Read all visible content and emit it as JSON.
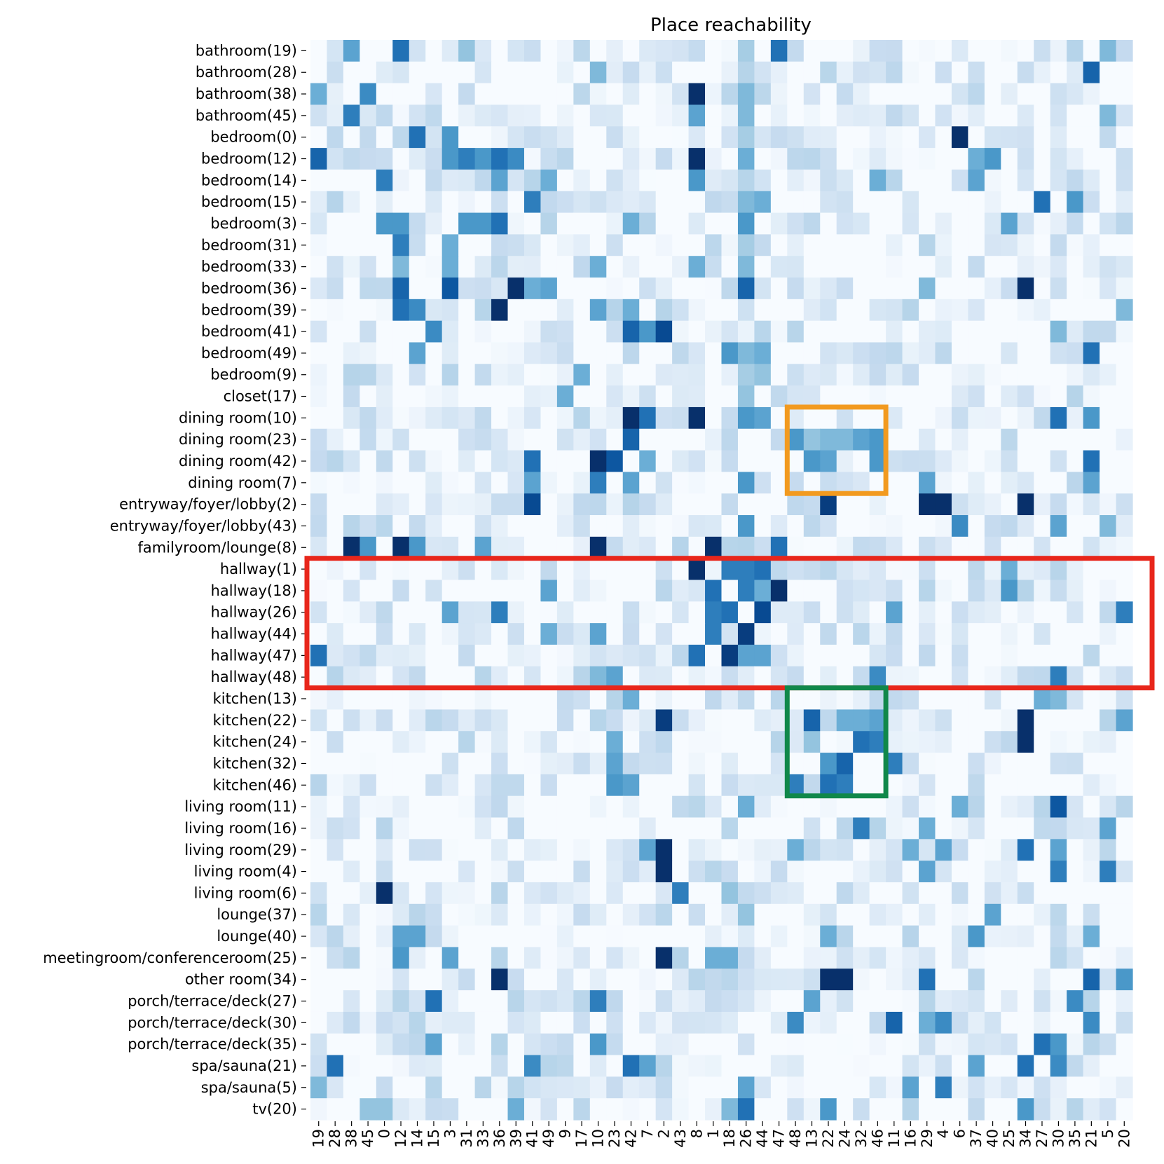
{
  "chart_data": {
    "type": "heatmap",
    "title": "Place reachability",
    "colormap": "Blues",
    "value_range": [
      0,
      1
    ],
    "row_labels": [
      "bathroom(19)",
      "bathroom(28)",
      "bathroom(38)",
      "bathroom(45)",
      "bedroom(0)",
      "bedroom(12)",
      "bedroom(14)",
      "bedroom(15)",
      "bedroom(3)",
      "bedroom(31)",
      "bedroom(33)",
      "bedroom(36)",
      "bedroom(39)",
      "bedroom(41)",
      "bedroom(49)",
      "bedroom(9)",
      "closet(17)",
      "dining room(10)",
      "dining room(23)",
      "dining room(42)",
      "dining room(7)",
      "entryway/foyer/lobby(2)",
      "entryway/foyer/lobby(43)",
      "familyroom/lounge(8)",
      "hallway(1)",
      "hallway(18)",
      "hallway(26)",
      "hallway(44)",
      "hallway(47)",
      "hallway(48)",
      "kitchen(13)",
      "kitchen(22)",
      "kitchen(24)",
      "kitchen(32)",
      "kitchen(46)",
      "living room(11)",
      "living room(16)",
      "living room(29)",
      "living room(4)",
      "living room(6)",
      "lounge(37)",
      "lounge(40)",
      "meetingroom/conferenceroom(25)",
      "other room(34)",
      "porch/terrace/deck(27)",
      "porch/terrace/deck(30)",
      "porch/terrace/deck(35)",
      "spa/sauna(21)",
      "spa/sauna(5)",
      "tv(20)"
    ],
    "col_labels": [
      "19",
      "28",
      "38",
      "45",
      "0",
      "12",
      "14",
      "15",
      "3",
      "31",
      "33",
      "36",
      "39",
      "41",
      "49",
      "9",
      "17",
      "10",
      "23",
      "42",
      "7",
      "2",
      "43",
      "8",
      "1",
      "18",
      "26",
      "44",
      "47",
      "48",
      "13",
      "22",
      "24",
      "32",
      "46",
      "11",
      "16",
      "29",
      "4",
      "6",
      "37",
      "40",
      "25",
      "34",
      "27",
      "30",
      "35",
      "21",
      "5",
      "20"
    ],
    "strong_cells": [
      [
        0,
        2,
        0.55
      ],
      [
        0,
        5,
        0.75
      ],
      [
        0,
        9,
        0.4
      ],
      [
        0,
        28,
        0.75
      ],
      [
        0,
        48,
        0.45
      ],
      [
        0,
        26,
        0.35
      ],
      [
        1,
        19,
        0.25
      ],
      [
        1,
        17,
        0.45
      ],
      [
        1,
        47,
        0.8
      ],
      [
        1,
        26,
        0.3
      ],
      [
        2,
        23,
        1.0
      ],
      [
        2,
        3,
        0.65
      ],
      [
        2,
        0,
        0.5
      ],
      [
        2,
        26,
        0.45
      ],
      [
        3,
        2,
        0.7
      ],
      [
        3,
        23,
        0.55
      ],
      [
        3,
        26,
        0.45
      ],
      [
        3,
        48,
        0.45
      ],
      [
        4,
        6,
        0.75
      ],
      [
        4,
        8,
        0.6
      ],
      [
        4,
        39,
        1.0
      ],
      [
        4,
        26,
        0.35
      ],
      [
        5,
        0,
        0.8
      ],
      [
        5,
        23,
        1.0
      ],
      [
        5,
        11,
        0.75
      ],
      [
        5,
        8,
        0.6
      ],
      [
        5,
        9,
        0.7
      ],
      [
        5,
        10,
        0.6
      ],
      [
        5,
        12,
        0.65
      ],
      [
        5,
        41,
        0.6
      ],
      [
        5,
        40,
        0.5
      ],
      [
        5,
        26,
        0.5
      ],
      [
        6,
        4,
        0.7
      ],
      [
        6,
        11,
        0.55
      ],
      [
        6,
        14,
        0.5
      ],
      [
        6,
        23,
        0.6
      ],
      [
        6,
        34,
        0.5
      ],
      [
        6,
        40,
        0.55
      ],
      [
        7,
        13,
        0.7
      ],
      [
        7,
        44,
        0.75
      ],
      [
        7,
        46,
        0.6
      ],
      [
        7,
        26,
        0.45
      ],
      [
        7,
        27,
        0.5
      ],
      [
        8,
        11,
        0.75
      ],
      [
        8,
        9,
        0.6
      ],
      [
        8,
        10,
        0.6
      ],
      [
        8,
        4,
        0.6
      ],
      [
        8,
        5,
        0.6
      ],
      [
        8,
        26,
        0.6
      ],
      [
        8,
        19,
        0.5
      ],
      [
        8,
        42,
        0.55
      ],
      [
        9,
        5,
        0.7
      ],
      [
        9,
        8,
        0.5
      ],
      [
        9,
        26,
        0.35
      ],
      [
        10,
        5,
        0.45
      ],
      [
        10,
        8,
        0.5
      ],
      [
        10,
        17,
        0.5
      ],
      [
        10,
        23,
        0.5
      ],
      [
        10,
        26,
        0.45
      ],
      [
        11,
        5,
        0.8
      ],
      [
        11,
        8,
        0.85
      ],
      [
        11,
        12,
        1.0
      ],
      [
        11,
        13,
        0.5
      ],
      [
        11,
        14,
        0.55
      ],
      [
        11,
        26,
        0.8
      ],
      [
        11,
        43,
        1.0
      ],
      [
        11,
        37,
        0.45
      ],
      [
        12,
        5,
        0.75
      ],
      [
        12,
        6,
        0.65
      ],
      [
        12,
        11,
        1.0
      ],
      [
        12,
        17,
        0.55
      ],
      [
        12,
        19,
        0.5
      ],
      [
        12,
        49,
        0.45
      ],
      [
        13,
        7,
        0.65
      ],
      [
        13,
        19,
        0.8
      ],
      [
        13,
        20,
        0.6
      ],
      [
        13,
        21,
        0.9
      ],
      [
        13,
        45,
        0.45
      ],
      [
        14,
        6,
        0.55
      ],
      [
        14,
        25,
        0.6
      ],
      [
        14,
        26,
        0.45
      ],
      [
        14,
        27,
        0.5
      ],
      [
        14,
        47,
        0.75
      ],
      [
        15,
        16,
        0.5
      ],
      [
        15,
        26,
        0.35
      ],
      [
        15,
        27,
        0.4
      ],
      [
        16,
        15,
        0.5
      ],
      [
        16,
        26,
        0.4
      ],
      [
        17,
        19,
        1.0
      ],
      [
        17,
        20,
        0.75
      ],
      [
        17,
        23,
        1.0
      ],
      [
        17,
        26,
        0.6
      ],
      [
        17,
        27,
        0.55
      ],
      [
        17,
        45,
        0.75
      ],
      [
        17,
        47,
        0.6
      ],
      [
        18,
        19,
        0.8
      ],
      [
        18,
        29,
        0.6
      ],
      [
        18,
        30,
        0.4
      ],
      [
        18,
        31,
        0.45
      ],
      [
        18,
        32,
        0.45
      ],
      [
        18,
        33,
        0.55
      ],
      [
        18,
        34,
        0.6
      ],
      [
        19,
        17,
        1.0
      ],
      [
        19,
        18,
        0.85
      ],
      [
        19,
        13,
        0.75
      ],
      [
        19,
        20,
        0.5
      ],
      [
        19,
        30,
        0.6
      ],
      [
        19,
        31,
        0.55
      ],
      [
        19,
        34,
        0.6
      ],
      [
        19,
        47,
        0.75
      ],
      [
        20,
        13,
        0.55
      ],
      [
        20,
        17,
        0.7
      ],
      [
        20,
        19,
        0.55
      ],
      [
        20,
        26,
        0.6
      ],
      [
        20,
        37,
        0.55
      ],
      [
        20,
        47,
        0.55
      ],
      [
        21,
        13,
        0.9
      ],
      [
        21,
        31,
        0.95
      ],
      [
        21,
        37,
        1.0
      ],
      [
        21,
        38,
        1.0
      ],
      [
        21,
        43,
        1.0
      ],
      [
        21,
        19,
        0.3
      ],
      [
        22,
        26,
        0.6
      ],
      [
        22,
        39,
        0.65
      ],
      [
        22,
        45,
        0.55
      ],
      [
        22,
        48,
        0.45
      ],
      [
        23,
        2,
        1.0
      ],
      [
        23,
        3,
        0.6
      ],
      [
        23,
        5,
        1.0
      ],
      [
        23,
        6,
        0.6
      ],
      [
        23,
        10,
        0.55
      ],
      [
        23,
        17,
        1.0
      ],
      [
        23,
        24,
        1.0
      ],
      [
        23,
        28,
        0.75
      ],
      [
        24,
        23,
        1.0
      ],
      [
        24,
        25,
        0.7
      ],
      [
        24,
        26,
        0.7
      ],
      [
        24,
        27,
        0.75
      ],
      [
        24,
        24,
        0.05
      ],
      [
        24,
        42,
        0.5
      ],
      [
        25,
        24,
        0.75
      ],
      [
        25,
        26,
        0.7
      ],
      [
        25,
        27,
        0.5
      ],
      [
        25,
        28,
        1.0
      ],
      [
        25,
        14,
        0.55
      ],
      [
        25,
        42,
        0.6
      ],
      [
        26,
        11,
        0.7
      ],
      [
        26,
        27,
        0.9
      ],
      [
        26,
        25,
        0.75
      ],
      [
        26,
        24,
        0.7
      ],
      [
        26,
        8,
        0.55
      ],
      [
        26,
        49,
        0.7
      ],
      [
        26,
        35,
        0.55
      ],
      [
        27,
        26,
        0.95
      ],
      [
        27,
        24,
        0.7
      ],
      [
        27,
        27,
        0.05
      ],
      [
        27,
        17,
        0.55
      ],
      [
        27,
        14,
        0.5
      ],
      [
        28,
        0,
        0.75
      ],
      [
        28,
        23,
        0.75
      ],
      [
        28,
        25,
        0.95
      ],
      [
        28,
        26,
        0.55
      ],
      [
        28,
        27,
        0.55
      ],
      [
        29,
        34,
        0.65
      ],
      [
        29,
        45,
        0.7
      ],
      [
        29,
        17,
        0.45
      ],
      [
        29,
        18,
        0.55
      ],
      [
        30,
        19,
        0.5
      ],
      [
        30,
        44,
        0.5
      ],
      [
        30,
        45,
        0.45
      ],
      [
        31,
        21,
        0.95
      ],
      [
        31,
        30,
        0.8
      ],
      [
        31,
        32,
        0.5
      ],
      [
        31,
        33,
        0.5
      ],
      [
        31,
        34,
        0.55
      ],
      [
        31,
        43,
        1.0
      ],
      [
        31,
        49,
        0.55
      ],
      [
        32,
        30,
        0.4
      ],
      [
        32,
        33,
        0.75
      ],
      [
        32,
        34,
        0.7
      ],
      [
        32,
        43,
        1.0
      ],
      [
        32,
        18,
        0.5
      ],
      [
        33,
        31,
        0.6
      ],
      [
        33,
        32,
        0.8
      ],
      [
        33,
        35,
        0.7
      ],
      [
        33,
        18,
        0.55
      ],
      [
        34,
        29,
        0.7
      ],
      [
        34,
        31,
        0.75
      ],
      [
        34,
        32,
        0.7
      ],
      [
        34,
        18,
        0.6
      ],
      [
        34,
        19,
        0.55
      ],
      [
        35,
        26,
        0.5
      ],
      [
        35,
        39,
        0.5
      ],
      [
        35,
        45,
        0.85
      ],
      [
        36,
        33,
        0.7
      ],
      [
        36,
        37,
        0.5
      ],
      [
        36,
        48,
        0.55
      ],
      [
        37,
        21,
        1.0
      ],
      [
        37,
        20,
        0.55
      ],
      [
        37,
        29,
        0.5
      ],
      [
        37,
        36,
        0.5
      ],
      [
        37,
        38,
        0.55
      ],
      [
        37,
        43,
        0.75
      ],
      [
        37,
        45,
        0.55
      ],
      [
        38,
        21,
        1.0
      ],
      [
        38,
        37,
        0.55
      ],
      [
        38,
        45,
        0.7
      ],
      [
        38,
        48,
        0.7
      ],
      [
        39,
        4,
        1.0
      ],
      [
        39,
        22,
        0.7
      ],
      [
        39,
        25,
        0.4
      ],
      [
        40,
        41,
        0.55
      ],
      [
        40,
        26,
        0.4
      ],
      [
        41,
        5,
        0.55
      ],
      [
        41,
        6,
        0.55
      ],
      [
        41,
        31,
        0.5
      ],
      [
        41,
        40,
        0.6
      ],
      [
        41,
        47,
        0.5
      ],
      [
        42,
        21,
        1.0
      ],
      [
        42,
        5,
        0.6
      ],
      [
        42,
        8,
        0.55
      ],
      [
        42,
        24,
        0.5
      ],
      [
        42,
        25,
        0.5
      ],
      [
        43,
        11,
        1.0
      ],
      [
        43,
        31,
        1.0
      ],
      [
        43,
        32,
        1.0
      ],
      [
        43,
        37,
        0.75
      ],
      [
        43,
        47,
        0.8
      ],
      [
        43,
        49,
        0.6
      ],
      [
        44,
        7,
        0.75
      ],
      [
        44,
        17,
        0.7
      ],
      [
        44,
        30,
        0.55
      ],
      [
        44,
        46,
        0.65
      ],
      [
        45,
        29,
        0.65
      ],
      [
        45,
        35,
        0.8
      ],
      [
        45,
        38,
        0.65
      ],
      [
        45,
        47,
        0.65
      ],
      [
        45,
        37,
        0.5
      ],
      [
        46,
        7,
        0.55
      ],
      [
        46,
        17,
        0.6
      ],
      [
        46,
        44,
        0.75
      ],
      [
        46,
        45,
        0.6
      ],
      [
        47,
        1,
        0.75
      ],
      [
        47,
        13,
        0.65
      ],
      [
        47,
        19,
        0.75
      ],
      [
        47,
        20,
        0.55
      ],
      [
        47,
        43,
        0.75
      ],
      [
        47,
        45,
        0.65
      ],
      [
        47,
        40,
        0.55
      ],
      [
        48,
        0,
        0.45
      ],
      [
        48,
        26,
        0.55
      ],
      [
        48,
        38,
        0.7
      ],
      [
        48,
        36,
        0.55
      ],
      [
        49,
        12,
        0.5
      ],
      [
        49,
        26,
        0.75
      ],
      [
        49,
        31,
        0.6
      ],
      [
        49,
        43,
        0.6
      ],
      [
        49,
        25,
        0.45
      ],
      [
        49,
        3,
        0.4
      ],
      [
        49,
        4,
        0.4
      ]
    ],
    "highlight_boxes": [
      {
        "color": "#f29a1f",
        "rows": [
          17,
          20
        ],
        "cols": [
          29,
          34
        ]
      },
      {
        "color": "#e8261b",
        "rows": [
          24,
          29
        ],
        "cols": [
          0,
          49
        ]
      },
      {
        "color": "#10884a",
        "rows": [
          30,
          34
        ],
        "cols": [
          29,
          34
        ]
      }
    ],
    "grid": false,
    "legend": "none"
  }
}
